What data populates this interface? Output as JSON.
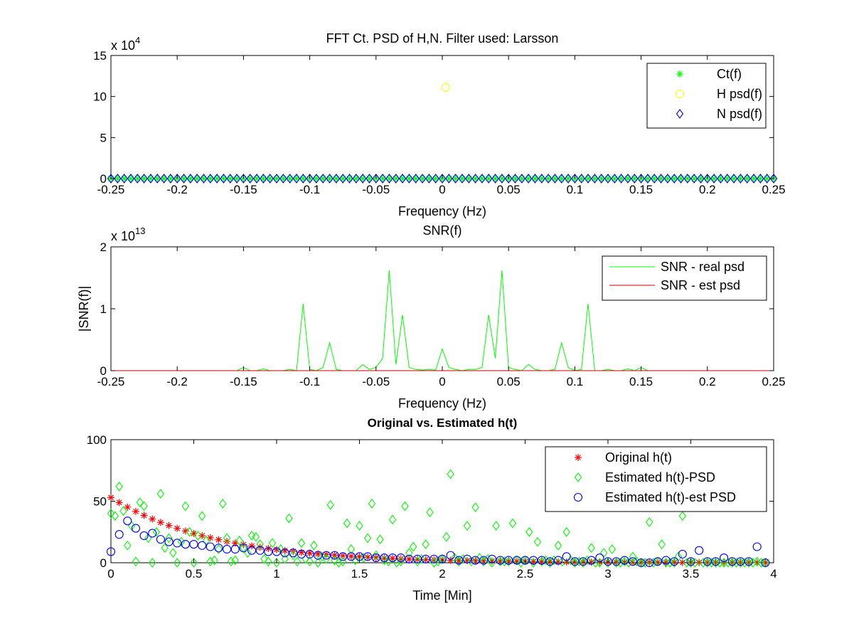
{
  "figure": {
    "background": "#ffffff"
  },
  "chart_data": [
    {
      "type": "scatter",
      "title": "FFT Ct. PSD of H,N. Filter used: Larsson",
      "xlabel": "Frequency (Hz)",
      "ylabel": "",
      "exponent_label": "x 10",
      "exponent": "4",
      "xlim": [
        -0.25,
        0.25
      ],
      "ylim": [
        0,
        15
      ],
      "xticks": [
        -0.25,
        -0.2,
        -0.15,
        -0.1,
        -0.05,
        0,
        0.05,
        0.1,
        0.15,
        0.2,
        0.25
      ],
      "xtick_labels": [
        "-0.25",
        "-0.2",
        "-0.15",
        "-0.1",
        "-0.05",
        "0",
        "0.05",
        "0.1",
        "0.15",
        "0.2",
        "0.25"
      ],
      "yticks": [
        0,
        5,
        10,
        15
      ],
      "ytick_labels": [
        "0",
        "5",
        "10",
        "15"
      ],
      "legend_position": "top-right",
      "series": [
        {
          "name": "Ct(f)",
          "marker": "asterisk",
          "color": "#00ff00",
          "x_range": [
            -0.25,
            0.25
          ],
          "count": 101,
          "y_const": 0
        },
        {
          "name": "H psd(f)",
          "marker": "circle",
          "color": "#ffff00",
          "x": [
            0.0025
          ],
          "y": [
            11.1
          ]
        },
        {
          "name": "N psd(f)",
          "marker": "diamond",
          "color": "#0000ff",
          "x_range": [
            -0.25,
            0.25
          ],
          "count": 101,
          "y_const": 0
        }
      ]
    },
    {
      "type": "line",
      "title": "SNR(f)",
      "xlabel": "Frequency (Hz)",
      "ylabel": "|SNR(f)|",
      "exponent_label": "x 10",
      "exponent": "13",
      "xlim": [
        -0.25,
        0.25
      ],
      "ylim": [
        0,
        2
      ],
      "xticks": [
        -0.25,
        -0.2,
        -0.15,
        -0.1,
        -0.05,
        0,
        0.05,
        0.1,
        0.15,
        0.2,
        0.25
      ],
      "xtick_labels": [
        "-0.25",
        "-0.2",
        "-0.15",
        "-0.1",
        "-0.05",
        "0",
        "0.05",
        "0.1",
        "0.15",
        "0.2",
        "0.25"
      ],
      "yticks": [
        0,
        1,
        2
      ],
      "ytick_labels": [
        "0",
        "1",
        "2"
      ],
      "legend_position": "top-right",
      "series": [
        {
          "name": "SNR - real psd",
          "color": "#00ff00",
          "x": [
            -0.25,
            -0.16,
            -0.155,
            -0.15,
            -0.145,
            -0.14,
            -0.135,
            -0.13,
            -0.12,
            -0.115,
            -0.11,
            -0.105,
            -0.1,
            -0.095,
            -0.09,
            -0.085,
            -0.08,
            -0.075,
            -0.07,
            -0.065,
            -0.06,
            -0.055,
            -0.05,
            -0.045,
            -0.04,
            -0.035,
            -0.03,
            -0.025,
            -0.02,
            -0.015,
            -0.01,
            -0.005,
            0,
            0.005,
            0.01,
            0.015,
            0.02,
            0.025,
            0.03,
            0.035,
            0.04,
            0.045,
            0.05,
            0.055,
            0.06,
            0.065,
            0.07,
            0.075,
            0.08,
            0.085,
            0.09,
            0.095,
            0.1,
            0.105,
            0.11,
            0.115,
            0.12,
            0.125,
            0.13,
            0.135,
            0.14,
            0.145,
            0.15,
            0.155,
            0.16,
            0.165,
            0.25
          ],
          "y": [
            0,
            0,
            0,
            0.05,
            0,
            0,
            0.03,
            0,
            0,
            0.02,
            0,
            1.08,
            0.02,
            0,
            0.05,
            0.45,
            0.02,
            0,
            0,
            0,
            0.1,
            0.02,
            0.05,
            0.2,
            1.62,
            0.1,
            0.9,
            0.05,
            0.02,
            0.01,
            0.02,
            0.01,
            0.35,
            0.05,
            0.02,
            0,
            0.02,
            0.02,
            0.05,
            0.9,
            0.2,
            1.62,
            0.05,
            0.02,
            0,
            0.1,
            0.02,
            0,
            0,
            0.02,
            0.45,
            0.05,
            0,
            0.02,
            1.08,
            0,
            0,
            0.02,
            0,
            0,
            0.03,
            0,
            0.05,
            0,
            0,
            0,
            0
          ]
        },
        {
          "name": "SNR - est psd",
          "color": "#cc0000",
          "x": [
            -0.25,
            0.25
          ],
          "y": [
            0,
            0
          ]
        }
      ]
    },
    {
      "type": "scatter",
      "title": "Original vs. Estimated h(t)",
      "xlabel": "Time [Min]",
      "ylabel": "",
      "xlim": [
        0,
        4
      ],
      "ylim": [
        0,
        100
      ],
      "xticks": [
        0,
        0.5,
        1,
        1.5,
        2,
        2.5,
        3,
        3.5,
        4
      ],
      "xtick_labels": [
        "0",
        "0.5",
        "1",
        "1.5",
        "2",
        "2.5",
        "3",
        "3.5",
        "4"
      ],
      "yticks": [
        0,
        50,
        100
      ],
      "ytick_labels": [
        "0",
        "50",
        "100"
      ],
      "legend_position": "top-right",
      "series": [
        {
          "name": "Original h(t)",
          "marker": "asterisk",
          "color": "#ff0000",
          "model": "exponential",
          "amplitude": 53,
          "rate": 1.6,
          "x_range": [
            0,
            3.95
          ],
          "count": 80
        },
        {
          "name": "Estimated h(t)-PSD",
          "marker": "diamond",
          "color": "#00ff00",
          "x": [
            0,
            0.025,
            0.05,
            0.075,
            0.1,
            0.125,
            0.15,
            0.175,
            0.2,
            0.225,
            0.25,
            0.275,
            0.3,
            0.325,
            0.35,
            0.375,
            0.4,
            0.425,
            0.45,
            0.475,
            0.5,
            0.525,
            0.55,
            0.575,
            0.6,
            0.625,
            0.65,
            0.675,
            0.7,
            0.725,
            0.75,
            0.775,
            0.8,
            0.825,
            0.85,
            0.875,
            0.9,
            0.925,
            0.95,
            0.975,
            1.0,
            1.025,
            1.05,
            1.075,
            1.1,
            1.125,
            1.15,
            1.175,
            1.2,
            1.225,
            1.25,
            1.275,
            1.3,
            1.325,
            1.35,
            1.375,
            1.4,
            1.425,
            1.45,
            1.475,
            1.5,
            1.525,
            1.55,
            1.575,
            1.6,
            1.625,
            1.65,
            1.675,
            1.7,
            1.725,
            1.75,
            1.775,
            1.8,
            1.825,
            1.85,
            1.875,
            1.9,
            1.925,
            1.95,
            1.975,
            2.0,
            2.025,
            2.05,
            2.075,
            2.1,
            2.125,
            2.15,
            2.175,
            2.2,
            2.225,
            2.25,
            2.275,
            2.3,
            2.325,
            2.35,
            2.375,
            2.4,
            2.425,
            2.45,
            2.475,
            2.5,
            2.525,
            2.55,
            2.575,
            2.6,
            2.625,
            2.65,
            2.675,
            2.7,
            2.725,
            2.75,
            2.775,
            2.8,
            2.825,
            2.85,
            2.875,
            2.9,
            2.925,
            2.95,
            2.975,
            3.0,
            3.025,
            3.05,
            3.075,
            3.1,
            3.125,
            3.15,
            3.175,
            3.2,
            3.225,
            3.25,
            3.275,
            3.3,
            3.325,
            3.35,
            3.375,
            3.4,
            3.425,
            3.45,
            3.475,
            3.5,
            3.525,
            3.55,
            3.575,
            3.6,
            3.625,
            3.65,
            3.675,
            3.7,
            3.725,
            3.75,
            3.775,
            3.8,
            3.825,
            3.85,
            3.875,
            3.9,
            3.925,
            3.95
          ],
          "y": [
            40,
            38,
            62,
            42,
            14,
            30,
            1,
            49,
            46,
            20,
            0,
            25,
            56,
            12,
            20,
            8,
            0,
            17,
            46,
            25,
            0,
            22,
            38,
            18,
            1,
            2,
            11,
            48,
            20,
            1,
            2,
            18,
            12,
            8,
            22,
            21,
            15,
            3,
            1,
            16,
            0,
            11,
            3,
            36,
            6,
            1,
            16,
            3,
            1,
            14,
            0,
            5,
            3,
            47,
            2,
            0,
            1,
            32,
            11,
            2,
            30,
            4,
            20,
            48,
            6,
            19,
            2,
            1,
            35,
            0,
            1,
            46,
            8,
            13,
            1,
            3,
            15,
            41,
            0,
            1,
            3,
            21,
            72,
            4,
            1,
            3,
            30,
            1,
            45,
            4,
            1,
            3,
            0,
            30,
            1,
            1,
            1,
            32,
            2,
            0,
            2,
            25,
            0,
            17,
            1,
            2,
            0,
            2,
            14,
            1,
            25,
            2,
            0,
            1,
            0,
            2,
            12,
            0,
            0,
            8,
            0,
            11,
            0,
            0,
            1,
            0,
            5,
            1,
            0,
            0,
            33,
            0,
            1,
            15,
            0,
            0,
            0,
            5,
            38,
            0,
            0,
            0,
            46,
            0,
            0,
            0,
            0,
            0,
            0,
            0,
            0,
            0,
            0,
            0,
            0,
            0,
            1,
            0,
            0
          ]
        },
        {
          "name": "Estimated h(t)-est PSD",
          "marker": "circle",
          "color": "#0000ff",
          "x": [
            0,
            0.05,
            0.1,
            0.15,
            0.2,
            0.25,
            0.3,
            0.35,
            0.4,
            0.45,
            0.5,
            0.55,
            0.6,
            0.65,
            0.7,
            0.75,
            0.8,
            0.85,
            0.9,
            0.95,
            1.0,
            1.05,
            1.1,
            1.15,
            1.2,
            1.25,
            1.3,
            1.35,
            1.4,
            1.45,
            1.5,
            1.55,
            1.6,
            1.65,
            1.7,
            1.75,
            1.8,
            1.85,
            1.9,
            1.95,
            2.0,
            2.05,
            2.1,
            2.15,
            2.2,
            2.25,
            2.3,
            2.35,
            2.4,
            2.45,
            2.5,
            2.55,
            2.6,
            2.65,
            2.7,
            2.75,
            2.8,
            2.85,
            2.9,
            2.95,
            3.0,
            3.05,
            3.1,
            3.15,
            3.2,
            3.25,
            3.3,
            3.35,
            3.4,
            3.45,
            3.5,
            3.55,
            3.6,
            3.65,
            3.7,
            3.75,
            3.8,
            3.85,
            3.9,
            3.95
          ],
          "y": [
            9,
            23,
            34,
            28,
            22,
            24,
            19,
            17,
            16,
            15,
            15,
            14,
            13,
            12,
            11,
            11,
            12,
            10,
            10,
            9,
            9,
            8,
            8,
            7,
            7,
            6,
            6,
            6,
            5,
            5,
            5,
            5,
            4,
            4,
            4,
            4,
            3,
            3,
            3,
            3,
            3,
            6,
            2,
            3,
            2,
            2,
            3,
            2,
            2,
            2,
            2,
            2,
            2,
            1,
            2,
            5,
            1,
            1,
            2,
            4,
            1,
            1,
            2,
            1,
            0,
            0,
            1,
            2,
            1,
            7,
            1,
            10,
            1,
            1,
            4,
            1,
            1,
            1,
            13,
            0
          ]
        }
      ]
    }
  ]
}
